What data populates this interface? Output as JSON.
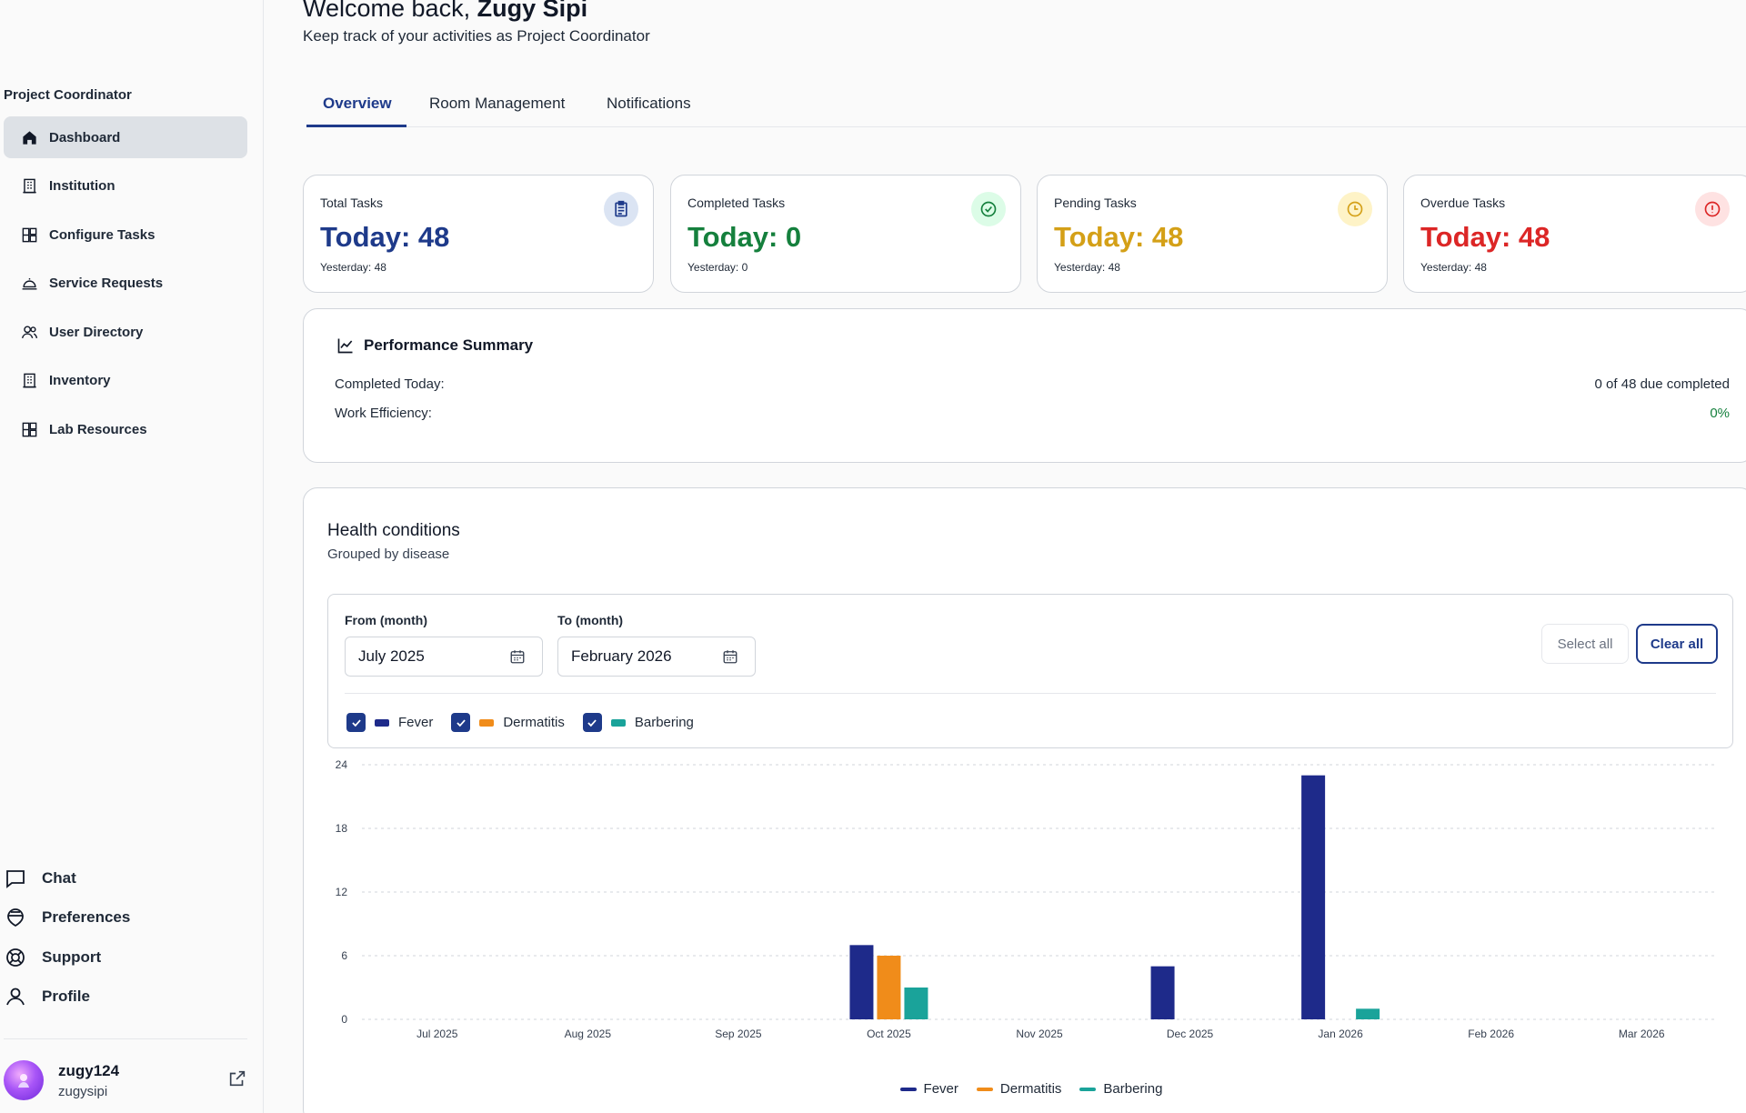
{
  "header": {
    "welcome_prefix": "Welcome back,",
    "user_display_name": "Zugy Sipi",
    "subtitle": "Keep track of your activities as Project Coordinator"
  },
  "sidebar": {
    "section_title": "Project Coordinator",
    "items": [
      {
        "label": "Dashboard",
        "icon": "home-icon",
        "active": true
      },
      {
        "label": "Institution",
        "icon": "building-icon"
      },
      {
        "label": "Configure Tasks",
        "icon": "grid-icon"
      },
      {
        "label": "Service Requests",
        "icon": "bell-service-icon"
      },
      {
        "label": "User Directory",
        "icon": "users-icon"
      },
      {
        "label": "Inventory",
        "icon": "building-icon"
      },
      {
        "label": "Lab Resources",
        "icon": "grid-icon"
      }
    ],
    "bottom_items": [
      {
        "label": "Chat",
        "icon": "chat-icon"
      },
      {
        "label": "Preferences",
        "icon": "preferences-icon"
      },
      {
        "label": "Support",
        "icon": "lifebuoy-icon"
      },
      {
        "label": "Profile",
        "icon": "user-icon"
      }
    ],
    "user": {
      "name": "zugy124",
      "handle": "zugysipi"
    }
  },
  "tabs": [
    {
      "label": "Overview",
      "active": true
    },
    {
      "label": "Room Management"
    },
    {
      "label": "Notifications"
    }
  ],
  "stats": [
    {
      "label": "Total Tasks",
      "value": "Today: 48",
      "yesterday": "Yesterday: 48",
      "color": "#1e3a8a",
      "badge_bg": "#dbe4f3",
      "icon": "clipboard-icon"
    },
    {
      "label": "Completed Tasks",
      "value": "Today: 0",
      "yesterday": "Yesterday: 0",
      "color": "#15803d",
      "badge_bg": "#dcfce7",
      "icon": "check-circle-icon"
    },
    {
      "label": "Pending Tasks",
      "value": "Today: 48",
      "yesterday": "Yesterday: 48",
      "color": "#d4a017",
      "badge_bg": "#fef3c7",
      "icon": "clock-icon"
    },
    {
      "label": "Overdue Tasks",
      "value": "Today: 48",
      "yesterday": "Yesterday: 48",
      "color": "#dc2626",
      "badge_bg": "#fee2e2",
      "icon": "alert-circle-icon"
    }
  ],
  "performance": {
    "title": "Performance Summary",
    "rows": [
      {
        "label": "Completed Today:",
        "value": "0 of 48 due completed"
      },
      {
        "label": "Work Efficiency:",
        "value": "0%"
      }
    ]
  },
  "health": {
    "title": "Health conditions",
    "subtitle": "Grouped by disease",
    "from_label": "From (month)",
    "from_value": "July 2025",
    "to_label": "To (month)",
    "to_value": "February 2026",
    "select_all": "Select all",
    "clear_all": "Clear all",
    "filters": [
      {
        "label": "Fever",
        "color": "#1e2a8a",
        "checked": true
      },
      {
        "label": "Dermatitis",
        "color": "#f08c1a",
        "checked": true
      },
      {
        "label": "Barbering",
        "color": "#1aa39a",
        "checked": true
      }
    ]
  },
  "chart_data": {
    "type": "bar",
    "categories": [
      "Jul 2025",
      "Aug 2025",
      "Sep 2025",
      "Oct 2025",
      "Nov 2025",
      "Dec 2025",
      "Jan 2026",
      "Feb 2026",
      "Mar 2026"
    ],
    "series": [
      {
        "name": "Fever",
        "color": "#1e2a8a",
        "values": [
          0,
          0,
          0,
          7,
          0,
          5,
          23,
          0,
          0
        ]
      },
      {
        "name": "Dermatitis",
        "color": "#f08c1a",
        "values": [
          0,
          0,
          0,
          6,
          0,
          0,
          0,
          0,
          0
        ]
      },
      {
        "name": "Barbering",
        "color": "#1aa39a",
        "values": [
          0,
          0,
          0,
          3,
          0,
          0,
          1,
          0,
          0
        ]
      }
    ],
    "yticks": [
      0,
      6,
      12,
      18,
      24
    ],
    "ylim": [
      0,
      24
    ],
    "grid": true,
    "legend": "bottom-center"
  }
}
